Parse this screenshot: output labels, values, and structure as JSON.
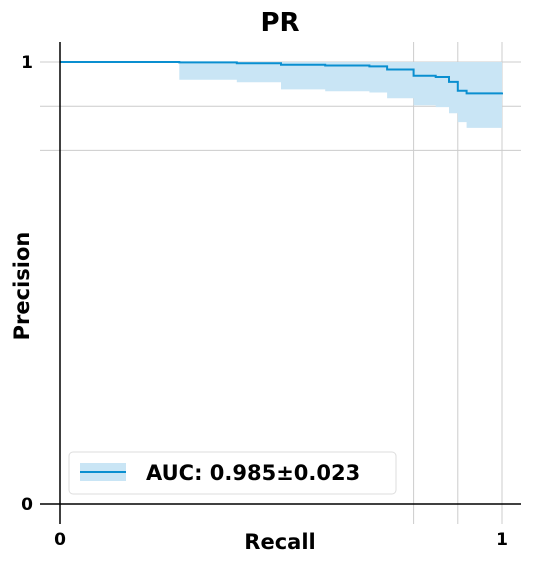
{
  "chart_data": {
    "type": "line",
    "title": "PR",
    "xlabel": "Recall",
    "ylabel": "Precision",
    "xlim": [
      0,
      1
    ],
    "ylim": [
      0,
      1
    ],
    "xticks": [
      "0",
      "1"
    ],
    "yticks": [
      "0",
      "1"
    ],
    "grid": true,
    "legend_position": "bottom-left",
    "colors": {
      "line": "#0a8fd0",
      "band": "#c9e5f5",
      "grid": "#cccccc",
      "axis": "#000000"
    },
    "series": [
      {
        "name": "AUC: 0.985±0.023",
        "x": [
          0.0,
          0.27,
          0.27,
          0.4,
          0.5,
          0.6,
          0.7,
          0.74,
          0.8,
          0.8,
          0.85,
          0.88,
          0.9,
          0.92,
          1.0
        ],
        "y": [
          1.0,
          1.0,
          0.999,
          0.997,
          0.994,
          0.992,
          0.99,
          0.983,
          0.98,
          0.969,
          0.966,
          0.955,
          0.935,
          0.929,
          0.931
        ],
        "lower": [
          1.0,
          1.0,
          0.96,
          0.954,
          0.938,
          0.934,
          0.931,
          0.918,
          0.916,
          0.902,
          0.898,
          0.884,
          0.864,
          0.851,
          0.861
        ],
        "upper": [
          1.0,
          1.0,
          1.0,
          1.0,
          1.0,
          1.0,
          1.0,
          1.0,
          1.0,
          1.0,
          1.0,
          1.0,
          1.0,
          1.0,
          1.0
        ]
      }
    ]
  }
}
